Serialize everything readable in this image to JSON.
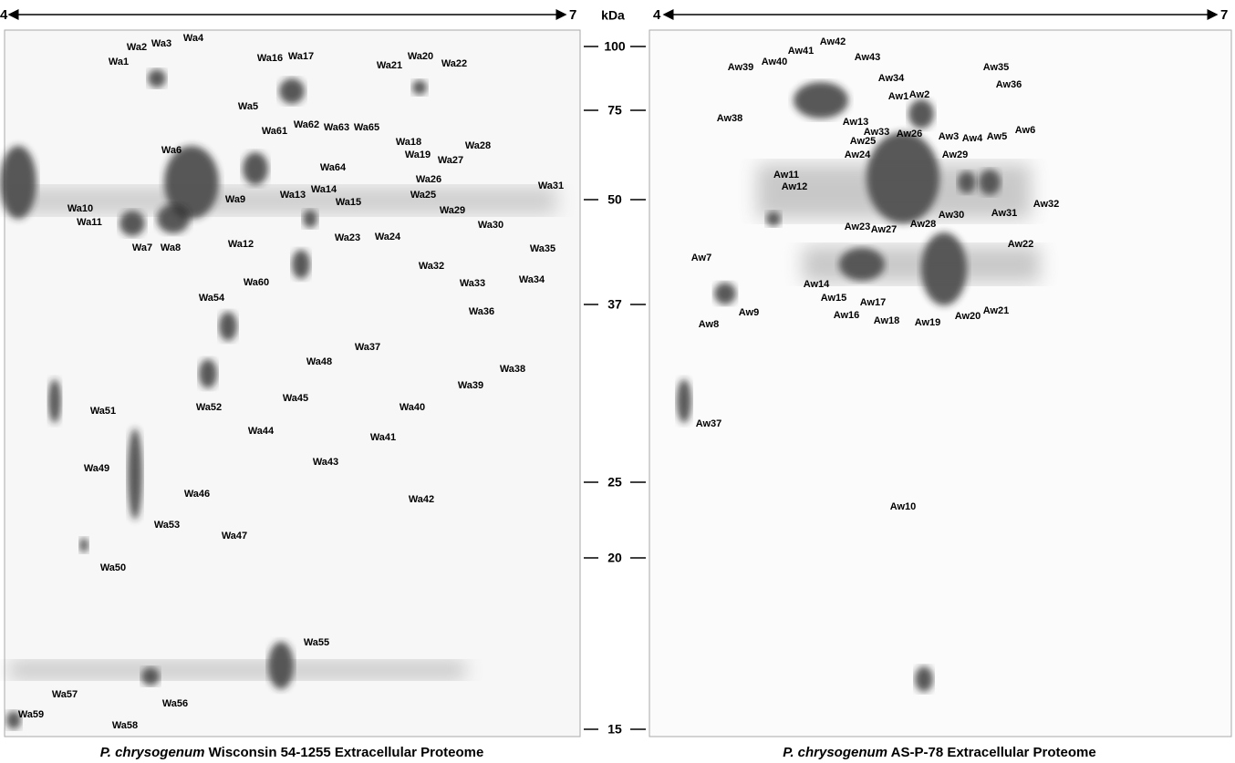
{
  "left_panel": {
    "ph_start": "4",
    "ph_end": "7",
    "spot_labels": [
      "Wa1",
      "Wa2",
      "Wa3",
      "Wa4",
      "Wa5",
      "Wa6",
      "Wa7",
      "Wa8",
      "Wa9",
      "Wa10",
      "Wa11",
      "Wa12",
      "Wa13",
      "Wa14",
      "Wa15",
      "Wa16",
      "Wa17",
      "Wa18",
      "Wa19",
      "Wa20",
      "Wa21",
      "Wa22",
      "Wa23",
      "Wa24",
      "Wa25",
      "Wa26",
      "Wa27",
      "Wa28",
      "Wa29",
      "Wa30",
      "Wa31",
      "Wa32",
      "Wa33",
      "Wa34",
      "Wa35",
      "Wa36",
      "Wa37",
      "Wa38",
      "Wa39",
      "Wa40",
      "Wa41",
      "Wa42",
      "Wa43",
      "Wa44",
      "Wa45",
      "Wa46",
      "Wa47",
      "Wa48",
      "Wa49",
      "Wa50",
      "Wa51",
      "Wa52",
      "Wa53",
      "Wa54",
      "Wa55",
      "Wa56",
      "Wa57",
      "Wa58",
      "Wa59",
      "Wa60",
      "Wa61",
      "Wa62",
      "Wa63",
      "Wa64",
      "Wa65"
    ],
    "caption": {
      "species": "P. chrysogenum",
      "strain": "Wisconsin 54-1255 Extracellular Proteome"
    }
  },
  "mw_axis": {
    "unit": "kDa",
    "ticks": [
      100,
      75,
      50,
      37,
      25,
      20,
      15
    ]
  },
  "right_panel": {
    "ph_start": "4",
    "ph_end": "7",
    "spot_labels": [
      "Aw1",
      "Aw2",
      "Aw3",
      "Aw4",
      "Aw5",
      "Aw6",
      "Aw7",
      "Aw8",
      "Aw9",
      "Aw10",
      "Aw11",
      "Aw12",
      "Aw13",
      "Aw14",
      "Aw15",
      "Aw16",
      "Aw17",
      "Aw18",
      "Aw19",
      "Aw20",
      "Aw21",
      "Aw22",
      "Aw23",
      "Aw24",
      "Aw25",
      "Aw26",
      "Aw27",
      "Aw28",
      "Aw29",
      "Aw30",
      "Aw31",
      "Aw32",
      "Aw33",
      "Aw34",
      "Aw35",
      "Aw36",
      "Aw37",
      "Aw38",
      "Aw39",
      "Aw40",
      "Aw41",
      "Aw42",
      "Aw43"
    ],
    "caption": {
      "species": "P. chrysogenum",
      "strain": "AS-P-78 Extracellular Proteome"
    }
  }
}
